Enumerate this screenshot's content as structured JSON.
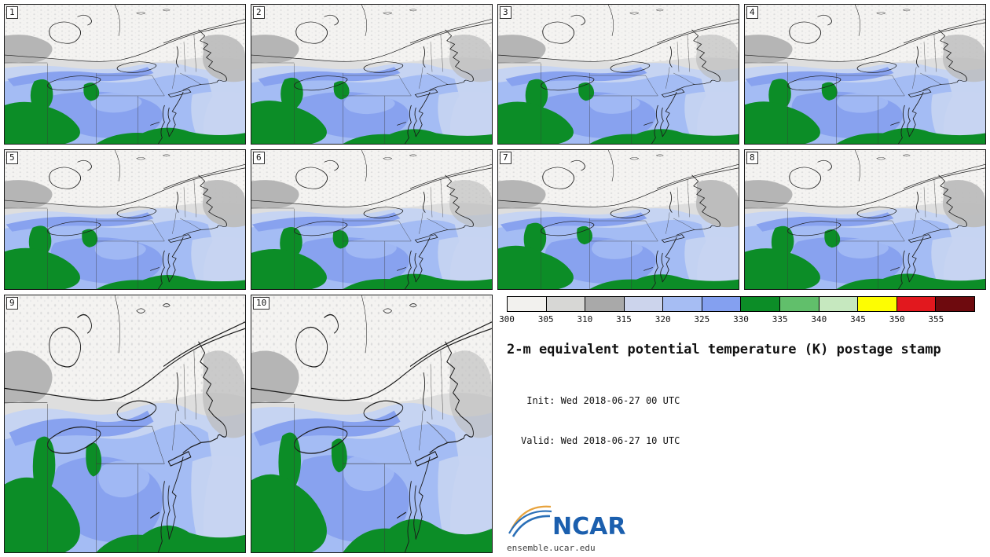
{
  "panels": [
    {
      "label": "1"
    },
    {
      "label": "2"
    },
    {
      "label": "3"
    },
    {
      "label": "4"
    },
    {
      "label": "5"
    },
    {
      "label": "6"
    },
    {
      "label": "7"
    },
    {
      "label": "8"
    },
    {
      "label": "9"
    },
    {
      "label": "10"
    }
  ],
  "legend": {
    "ticks": [
      "300",
      "305",
      "310",
      "315",
      "320",
      "325",
      "330",
      "335",
      "340",
      "345",
      "350",
      "355"
    ],
    "colors": [
      "#f2f1ee",
      "#d7d7d5",
      "#a9a9a9",
      "#ccd4ec",
      "#a6bdf3",
      "#84a0f0",
      "#0c8d27",
      "#61bf6b",
      "#c6e8bf",
      "#fdfd02",
      "#e2181e",
      "#6e0a0e"
    ]
  },
  "title": "2-m equivalent potential temperature (K) postage stamp",
  "times": {
    "init": " Init: Wed 2018-06-27 00 UTC",
    "valid": "Valid: Wed 2018-06-27 10 UTC"
  },
  "footer": {
    "logo_text": "NCAR",
    "logo_blue": "#1b5fae",
    "url": "ensemble.ucar.edu"
  },
  "map_colors": {
    "blue_pale": "#c6d4f2",
    "blue_mid": "#a4bcf4",
    "blue_deep": "#88a2ef",
    "green": "#0c8d27"
  }
}
